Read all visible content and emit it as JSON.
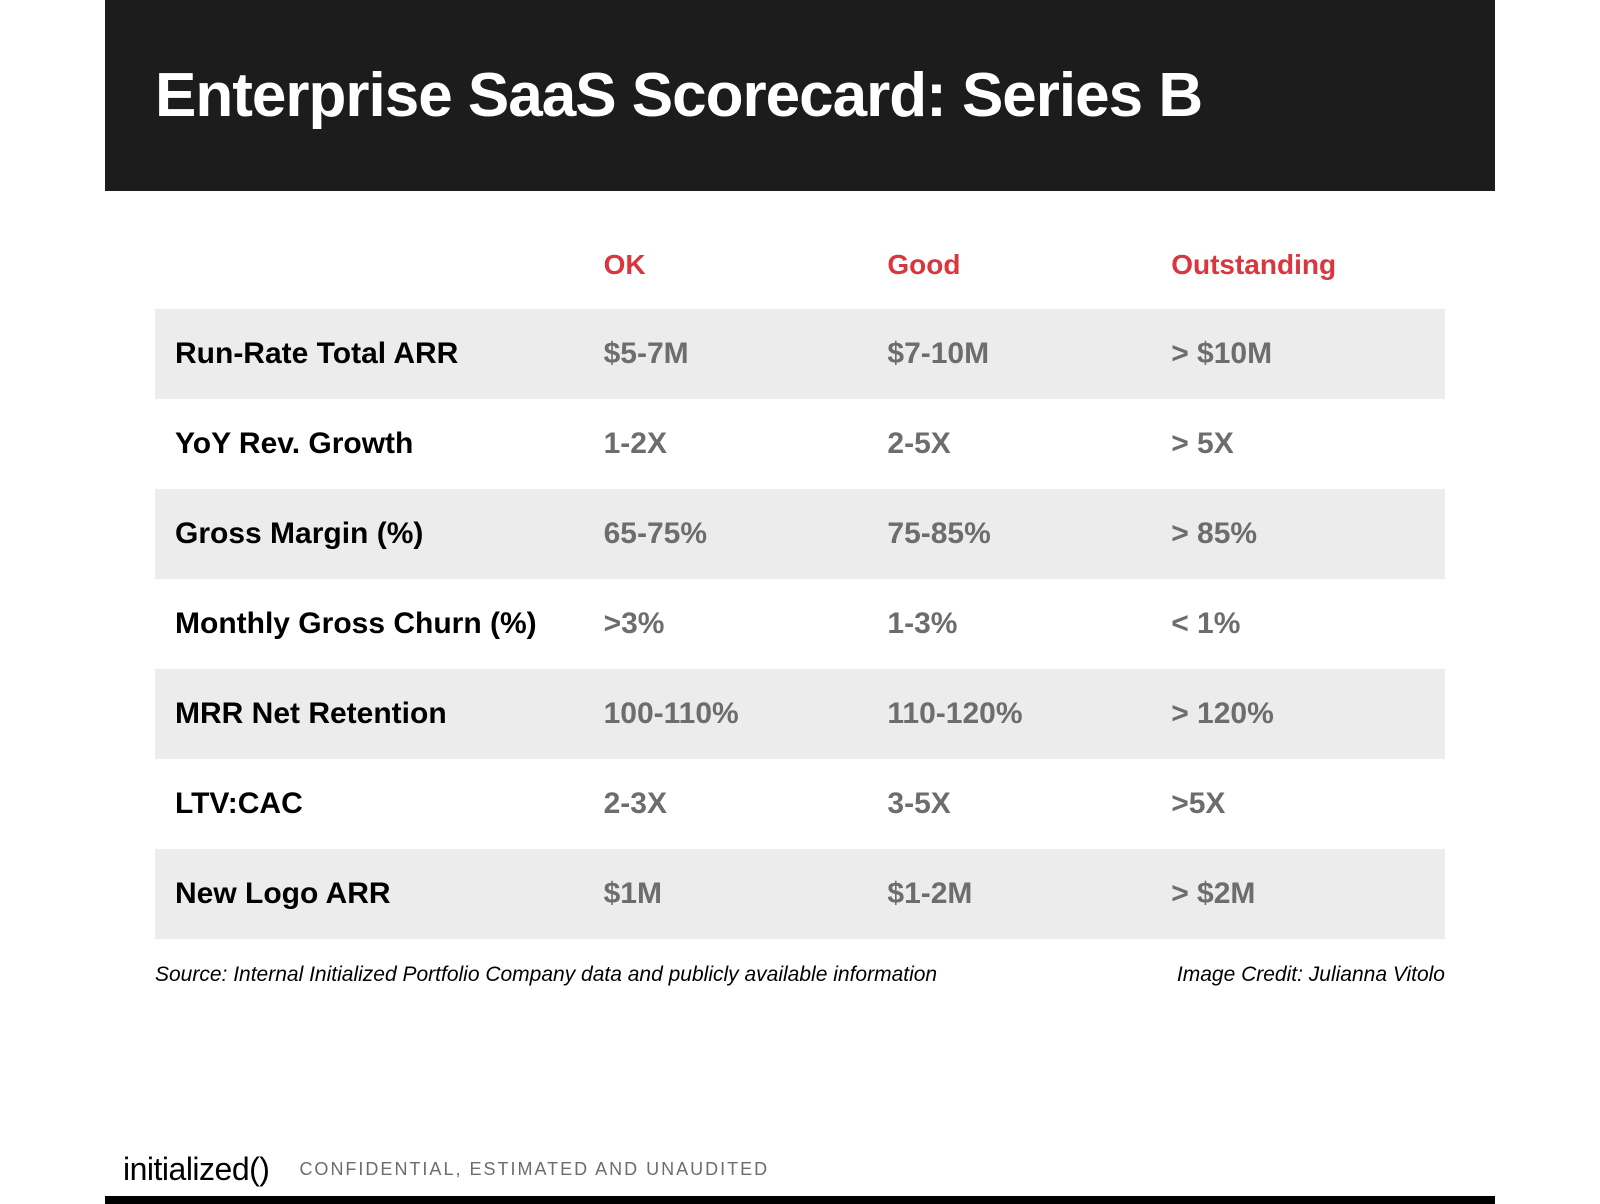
{
  "title": "Enterprise SaaS Scorecard: Series B",
  "table": {
    "type": "table",
    "header_color": "#d9363e",
    "metric_text_color": "#000000",
    "value_text_color": "#6d6d6d",
    "row_shaded_bg": "#ececec",
    "row_plain_bg": "#ffffff",
    "header_fontsize": 28,
    "cell_fontsize": 30,
    "columns": [
      "",
      "OK",
      "Good",
      "Outstanding"
    ],
    "rows": [
      {
        "metric": "Run-Rate Total ARR",
        "ok": "$5-7M",
        "good": "$7-10M",
        "outstanding": "> $10M",
        "shaded": true
      },
      {
        "metric": "YoY Rev. Growth",
        "ok": "1-2X",
        "good": "2-5X",
        "outstanding": "> 5X",
        "shaded": false
      },
      {
        "metric": "Gross Margin (%)",
        "ok": "65-75%",
        "good": "75-85%",
        "outstanding": "> 85%",
        "shaded": true
      },
      {
        "metric": "Monthly Gross Churn (%)",
        "ok": ">3%",
        "good": "1-3%",
        "outstanding": "< 1%",
        "shaded": false
      },
      {
        "metric": "MRR Net Retention",
        "ok": "100-110%",
        "good": "110-120%",
        "outstanding": "> 120%",
        "shaded": true
      },
      {
        "metric": "LTV:CAC",
        "ok": "2-3X",
        "good": "3-5X",
        "outstanding": ">5X",
        "shaded": false
      },
      {
        "metric": "New Logo ARR",
        "ok": "$1M",
        "good": "$1-2M",
        "outstanding": "> $2M",
        "shaded": true
      }
    ]
  },
  "footnote_source": "Source: Internal Initialized Portfolio Company data and publicly available information",
  "footnote_credit": "Image Credit: Julianna Vitolo",
  "footer": {
    "logo_text": "initialized",
    "logo_parens": "()",
    "confidential": "CONFIDENTIAL, ESTIMATED AND UNAUDITED"
  },
  "colors": {
    "header_band_bg": "#1c1c1c",
    "title_color": "#ffffff",
    "page_bg": "#ffffff"
  }
}
